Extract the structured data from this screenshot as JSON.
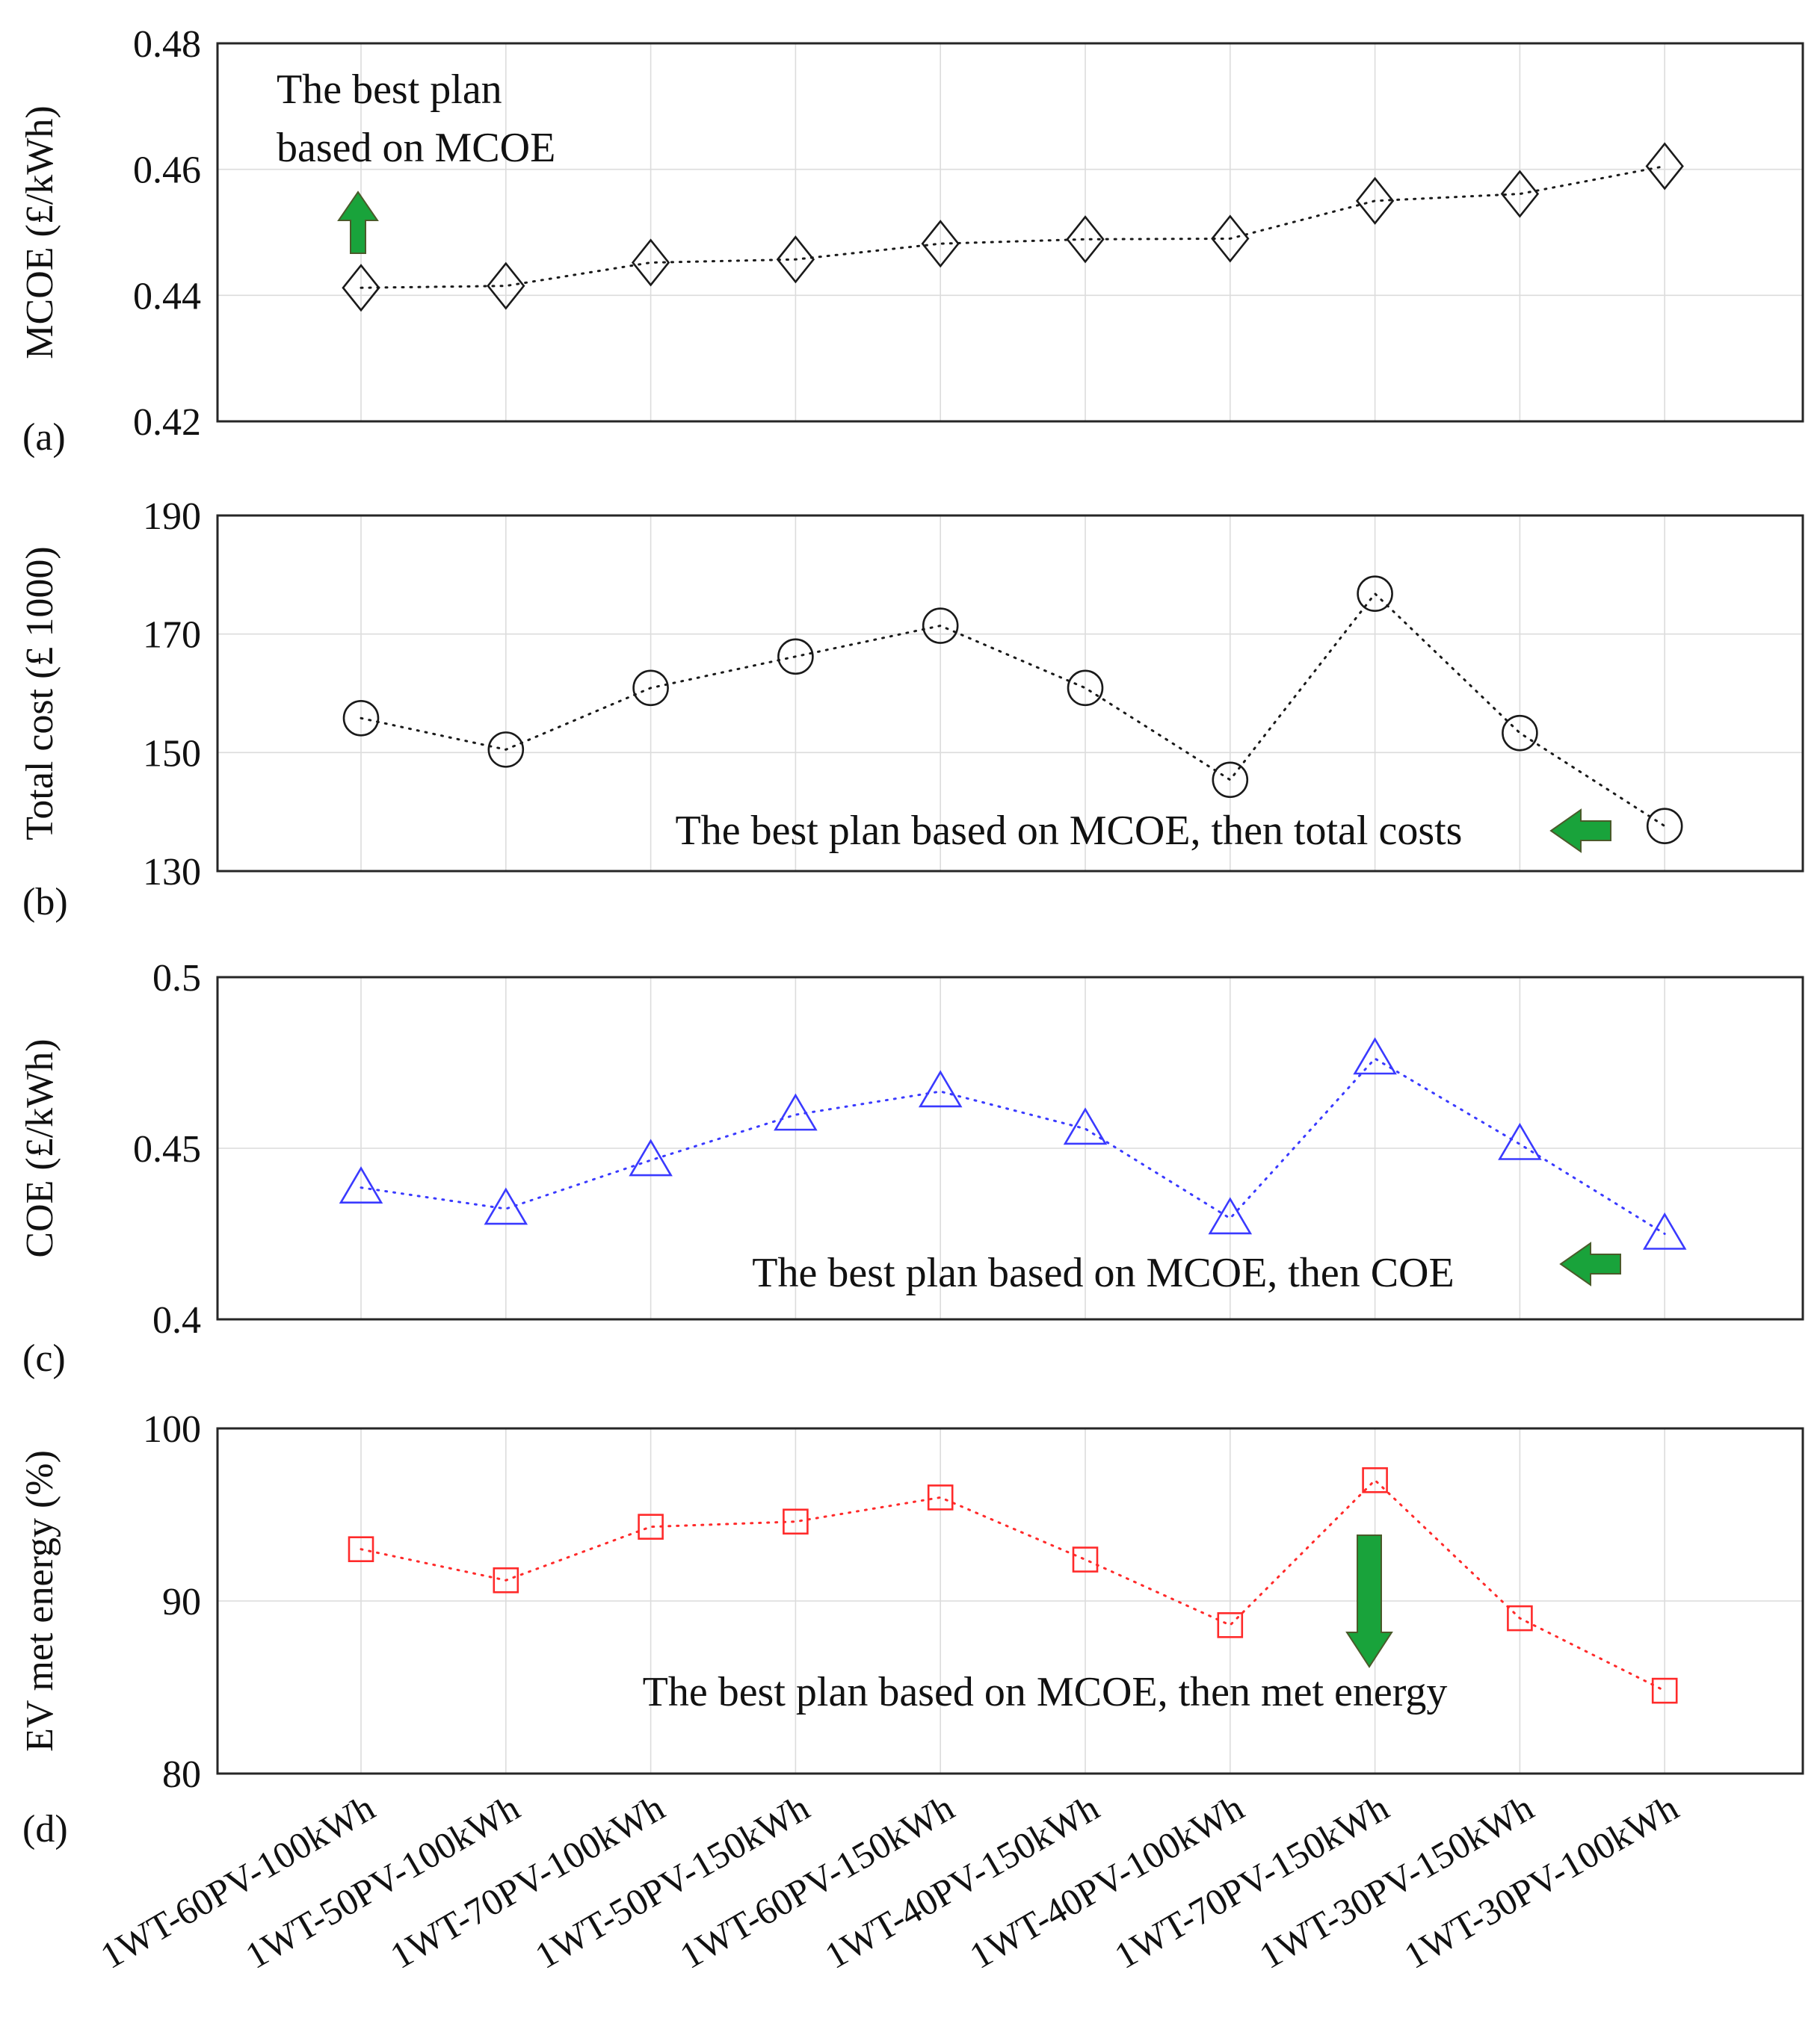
{
  "categories": [
    "1WT-60PV-100kWh",
    "1WT-50PV-100kWh",
    "1WT-70PV-100kWh",
    "1WT-50PV-150kWh",
    "1WT-60PV-150kWh",
    "1WT-40PV-150kWh",
    "1WT-40PV-100kWh",
    "1WT-70PV-150kWh",
    "1WT-30PV-150kWh",
    "1WT-30PV-100kWh"
  ],
  "chart_data": [
    {
      "type": "line",
      "panel_label": "(a)",
      "ylabel": "MCOE (£/kWh)",
      "ylim": [
        0.42,
        0.48
      ],
      "yticks": [
        "0.42",
        "0.44",
        "0.46",
        "0.48"
      ],
      "grid": true,
      "marker": "diamond",
      "color": "#1a1a1a",
      "values": [
        0.4412,
        0.4415,
        0.4452,
        0.4457,
        0.4482,
        0.4489,
        0.449,
        0.455,
        0.4561,
        0.4605
      ],
      "annotation": {
        "lines": [
          "The best plan",
          "based on MCOE"
        ],
        "arrow": "up",
        "target_index": 0
      }
    },
    {
      "type": "line",
      "panel_label": "(b)",
      "ylabel": "Total cost (£ 1000)",
      "ylim": [
        130,
        190
      ],
      "yticks": [
        "130",
        "150",
        "170",
        "190"
      ],
      "grid": true,
      "marker": "circle",
      "color": "#1a1a1a",
      "values": [
        155.8,
        150.5,
        160.9,
        166.2,
        171.4,
        160.9,
        145.4,
        176.8,
        153.3,
        137.6
      ],
      "annotation": {
        "lines": [
          "The best plan based on MCOE, then total costs"
        ],
        "arrow": "left",
        "target_index": 9
      }
    },
    {
      "type": "line",
      "panel_label": "(c)",
      "ylabel": "COE (£/kWh)",
      "ylim": [
        0.4,
        0.5
      ],
      "yticks": [
        "0.4",
        "0.45",
        "0.5"
      ],
      "grid": true,
      "marker": "triangle",
      "color": "#3a3aff",
      "values": [
        0.4385,
        0.4323,
        0.4465,
        0.4598,
        0.4666,
        0.4557,
        0.4295,
        0.4762,
        0.4512,
        0.425
      ],
      "annotation": {
        "lines": [
          "The best plan based on MCOE, then COE"
        ],
        "arrow": "left",
        "target_index": 9
      }
    },
    {
      "type": "line",
      "panel_label": "(d)",
      "ylabel": "EV met energy (%)",
      "ylim": [
        80,
        100
      ],
      "yticks": [
        "80",
        "90",
        "100"
      ],
      "grid": true,
      "marker": "square",
      "color": "#ff2a2a",
      "values": [
        93.0,
        91.2,
        94.3,
        94.6,
        96.0,
        92.4,
        88.6,
        97.0,
        89.0,
        84.8
      ],
      "annotation": {
        "lines": [
          "The best plan based on MCOE, then met energy"
        ],
        "arrow": "down",
        "target_index": 7
      }
    }
  ]
}
